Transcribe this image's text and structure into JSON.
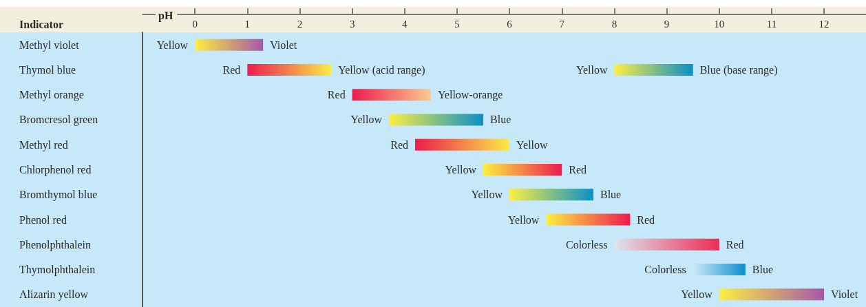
{
  "chart_data": {
    "type": "bar",
    "orientation": "horizontal",
    "xlabel": "pH",
    "ylabel": "Indicator",
    "categories": [
      "Methyl violet",
      "Thymol blue",
      "Methyl orange",
      "Bromcresol green",
      "Methyl red",
      "Chlorphenol red",
      "Bromthymol blue",
      "Phenol red",
      "Phenolphthalein",
      "Thymolphthalein",
      "Alizarin yellow"
    ],
    "series": [
      {
        "base": [
          0,
          1.0,
          3.0,
          3.7,
          4.2,
          5.5,
          6.0,
          6.7,
          8.0,
          9.5,
          10.0
        ],
        "values": [
          1.3,
          1.6,
          1.5,
          1.8,
          1.8,
          1.5,
          1.6,
          1.6,
          2.0,
          1.0,
          2.0
        ],
        "colors": [
          [
            "#fcee42",
            "#a558a8"
          ],
          [
            "#ec1c4f",
            "#fbec48"
          ],
          [
            "#ec1c4f",
            "#fcca8c"
          ],
          [
            "#fcee42",
            "#0a90c8"
          ],
          [
            "#ec1c4f",
            "#fbec48"
          ],
          [
            "#fcee42",
            "#ec1c4f"
          ],
          [
            "#fcee42",
            "#0a90c8"
          ],
          [
            "#fcee42",
            "#ec1c4f"
          ],
          [
            "#dde5ee",
            "#ec2c55"
          ],
          [
            "#cde8f7",
            "#0a90d2"
          ],
          [
            "#fcee42",
            "#a558a8"
          ]
        ]
      },
      {
        "base": [
          null,
          8.0,
          null,
          null,
          null,
          null,
          null,
          null,
          null,
          null,
          null
        ],
        "values": [
          null,
          1.5,
          null,
          null,
          null,
          null,
          null,
          null,
          null,
          null,
          null
        ],
        "colors": [
          null,
          [
            "#fcee42",
            "#0a8fc8"
          ],
          null,
          null,
          null,
          null,
          null,
          null,
          null,
          null,
          null
        ]
      }
    ],
    "xlim": [
      -1,
      12.8
    ],
    "xticks": [
      0,
      1,
      2,
      3,
      4,
      5,
      6,
      7,
      8,
      9,
      10,
      11,
      12
    ],
    "annotations": [
      {
        "text": "Yellow",
        "x": 0,
        "y": "Methyl violet"
      },
      {
        "text": "Violet",
        "x": 1.3,
        "y": "Methyl violet"
      },
      {
        "text": "Red",
        "x": 1.0,
        "y": "Thymol blue"
      },
      {
        "text": "Yellow (acid range)",
        "x": 2.6,
        "y": "Thymol blue"
      },
      {
        "text": "Yellow",
        "x": 8.0,
        "y": "Thymol blue"
      },
      {
        "text": "Blue (base range)",
        "x": 9.5,
        "y": "Thymol blue"
      },
      {
        "text": "Red",
        "x": 3.0,
        "y": "Methyl orange"
      },
      {
        "text": "Yellow-orange",
        "x": 4.5,
        "y": "Methyl orange"
      },
      {
        "text": "Yellow",
        "x": 3.7,
        "y": "Bromcresol green"
      },
      {
        "text": "Blue",
        "x": 5.5,
        "y": "Bromcresol green"
      },
      {
        "text": "Red",
        "x": 4.2,
        "y": "Methyl red"
      },
      {
        "text": "Yellow",
        "x": 6.0,
        "y": "Methyl red"
      },
      {
        "text": "Yellow",
        "x": 5.5,
        "y": "Chlorphenol red"
      },
      {
        "text": "Red",
        "x": 7.0,
        "y": "Chlorphenol red"
      },
      {
        "text": "Yellow",
        "x": 6.0,
        "y": "Bromthymol blue"
      },
      {
        "text": "Blue",
        "x": 7.6,
        "y": "Bromthymol blue"
      },
      {
        "text": "Yellow",
        "x": 6.7,
        "y": "Phenol red"
      },
      {
        "text": "Red",
        "x": 8.3,
        "y": "Phenol red"
      },
      {
        "text": "Colorless",
        "x": 8.0,
        "y": "Phenolphthalein"
      },
      {
        "text": "Red",
        "x": 10.0,
        "y": "Phenolphthalein"
      },
      {
        "text": "Colorless",
        "x": 9.5,
        "y": "Thymolphthalein"
      },
      {
        "text": "Blue",
        "x": 10.5,
        "y": "Thymolphthalein"
      },
      {
        "text": "Yellow",
        "x": 10.0,
        "y": "Alizarin yellow"
      },
      {
        "text": "Violet",
        "x": 12.0,
        "y": "Alizarin yellow"
      }
    ]
  }
}
